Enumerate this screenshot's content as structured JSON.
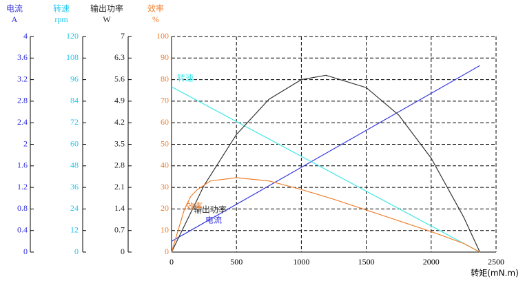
{
  "chart_data": {
    "type": "line",
    "xlabel": "转矩(mN.m)",
    "xlim": [
      0,
      2500
    ],
    "xticks": [
      0,
      500,
      1000,
      1500,
      2000,
      2500
    ],
    "grid": true,
    "y_axes": [
      {
        "title": "电流",
        "unit": "A",
        "color": "#2a2ad8",
        "ylim": [
          0,
          4
        ],
        "yticks": [
          0,
          0.4,
          0.8,
          1.2,
          1.6,
          2,
          2.4,
          2.8,
          3.2,
          3.6,
          4
        ]
      },
      {
        "title": "转速",
        "unit": "rpm",
        "color": "#22c8ee",
        "ylim": [
          0,
          120
        ],
        "yticks": [
          0,
          12,
          24,
          36,
          48,
          60,
          72,
          84,
          96,
          108,
          120
        ]
      },
      {
        "title": "输出功率",
        "unit": "W",
        "color": "#222222",
        "ylim": [
          0,
          7
        ],
        "yticks": [
          0,
          0.7,
          1.4,
          2.1,
          2.8,
          3.5,
          4.2,
          4.9,
          5.6,
          6.3,
          7
        ]
      },
      {
        "title": "效率",
        "unit": "%",
        "color": "#f08030",
        "ylim": [
          0,
          100
        ],
        "yticks": [
          0,
          10,
          20,
          30,
          40,
          50,
          60,
          70,
          80,
          90,
          100
        ]
      }
    ],
    "series": [
      {
        "name": "电流",
        "color": "#3a3ae0",
        "axis": 0,
        "x": [
          0,
          2375
        ],
        "values": [
          0.2,
          3.46
        ]
      },
      {
        "name": "转速",
        "color": "#40e8e8",
        "axis": 1,
        "x": [
          0,
          2375
        ],
        "values": [
          92,
          0
        ]
      },
      {
        "name": "输出功率",
        "color": "#333333",
        "axis": 2,
        "x": [
          0,
          250,
          500,
          750,
          1000,
          1190,
          1500,
          1750,
          2000,
          2250,
          2375
        ],
        "values": [
          0,
          2.16,
          3.82,
          4.96,
          5.6,
          5.74,
          5.34,
          4.45,
          3.05,
          1.14,
          0
        ]
      },
      {
        "name": "效率",
        "color": "#f08030",
        "axis": 3,
        "x": [
          0,
          50,
          100,
          150,
          200,
          300,
          500,
          750,
          1000,
          1250,
          1500,
          1750,
          2000,
          2250,
          2375
        ],
        "values": [
          0,
          10,
          20,
          26,
          29,
          33,
          34.5,
          33,
          29,
          24.5,
          19.5,
          14.5,
          9.5,
          4,
          0
        ]
      }
    ]
  }
}
